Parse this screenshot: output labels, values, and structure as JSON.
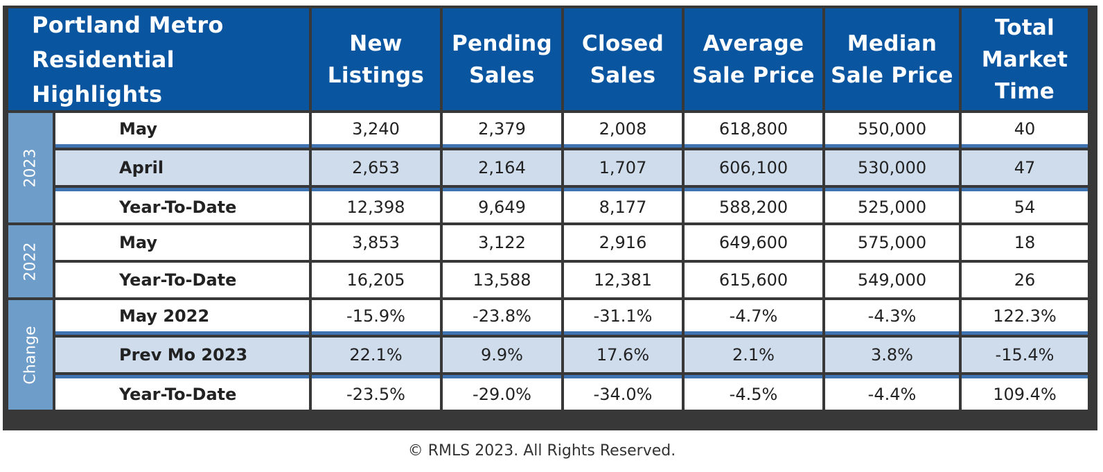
{
  "header": {
    "title": "Portland Metro Residential Highlights",
    "title_lines": [
      "Portland Metro",
      "Residential Highlights"
    ],
    "columns": [
      [
        "New",
        "Listings"
      ],
      [
        "Pending",
        "Sales"
      ],
      [
        "Closed",
        "Sales"
      ],
      [
        "Average",
        "Sale Price"
      ],
      [
        "Median",
        "Sale Price"
      ],
      [
        "Total",
        "Market",
        "Time"
      ]
    ]
  },
  "groups": [
    {
      "label": "2023",
      "rows": [
        {
          "label": "May",
          "values": [
            "3,240",
            "2,379",
            "2,008",
            "618,800",
            "550,000",
            "40"
          ]
        },
        {
          "label": "April",
          "values": [
            "2,653",
            "2,164",
            "1,707",
            "606,100",
            "530,000",
            "47"
          ]
        },
        {
          "label": "Year-To-Date",
          "values": [
            "12,398",
            "9,649",
            "8,177",
            "588,200",
            "525,000",
            "54"
          ]
        }
      ]
    },
    {
      "label": "2022",
      "rows": [
        {
          "label": "May",
          "values": [
            "3,853",
            "3,122",
            "2,916",
            "649,600",
            "575,000",
            "18"
          ]
        },
        {
          "label": "Year-To-Date",
          "values": [
            "16,205",
            "13,588",
            "12,381",
            "615,600",
            "549,000",
            "26"
          ]
        }
      ]
    },
    {
      "label": "Change",
      "rows": [
        {
          "label": "May 2022",
          "values": [
            "-15.9%",
            "-23.8%",
            "-31.1%",
            "-4.7%",
            "-4.3%",
            "122.3%"
          ]
        },
        {
          "label": "Prev Mo 2023",
          "values": [
            "22.1%",
            "9.9%",
            "17.6%",
            "2.1%",
            "3.8%",
            "-15.4%"
          ]
        },
        {
          "label": "Year-To-Date",
          "values": [
            "-23.5%",
            "-29.0%",
            "-34.0%",
            "-4.5%",
            "-4.4%",
            "109.4%"
          ]
        }
      ]
    }
  ],
  "footer": "© RMLS 2023. All Rights Reserved.",
  "colors": {
    "header_bg": "#0a55a0",
    "year_bg": "#6f9dc9",
    "highlight_row": "#cfdcec",
    "frame": "#383838",
    "accent_line": "#3f73b2"
  }
}
